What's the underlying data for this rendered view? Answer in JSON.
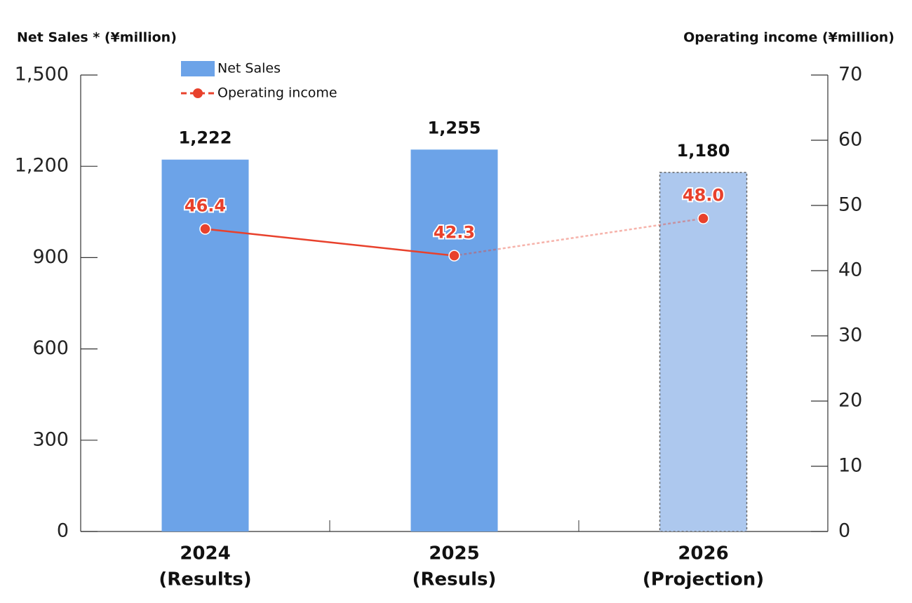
{
  "chart_data": {
    "type": "bar_line",
    "y_axis_title": "Net Sales * (¥million)",
    "y2_axis_title": "Operating income (¥million)",
    "categories": [
      "2024",
      "2025",
      "2026"
    ],
    "category_notes": [
      "(Results)",
      "(Resuls)",
      "(Projection)"
    ],
    "projected": [
      false,
      false,
      true
    ],
    "series": [
      {
        "name": "Net Sales",
        "type": "bar",
        "color": "#6ca3e8",
        "projected_color": "#adc8ee",
        "values": [
          1222,
          1255,
          1180
        ],
        "value_labels": [
          "1,222",
          "1,255",
          "1,180"
        ]
      },
      {
        "name": "Operating income",
        "type": "line",
        "axis": "y2",
        "color": "#e8412c",
        "values": [
          46.4,
          42.3,
          48.0
        ],
        "value_labels": [
          "46.4",
          "42.3",
          "48.0"
        ]
      }
    ],
    "ylim": [
      0,
      1500
    ],
    "yticks": [
      0,
      300,
      600,
      900,
      {
        "value": 1200,
        "label": "1,200"
      },
      {
        "value": 1500,
        "label": "1,500"
      }
    ],
    "y2lim": [
      0,
      70
    ],
    "y2ticks": [
      0,
      10,
      20,
      30,
      40,
      50,
      60,
      70
    ],
    "legend": "top-left"
  }
}
